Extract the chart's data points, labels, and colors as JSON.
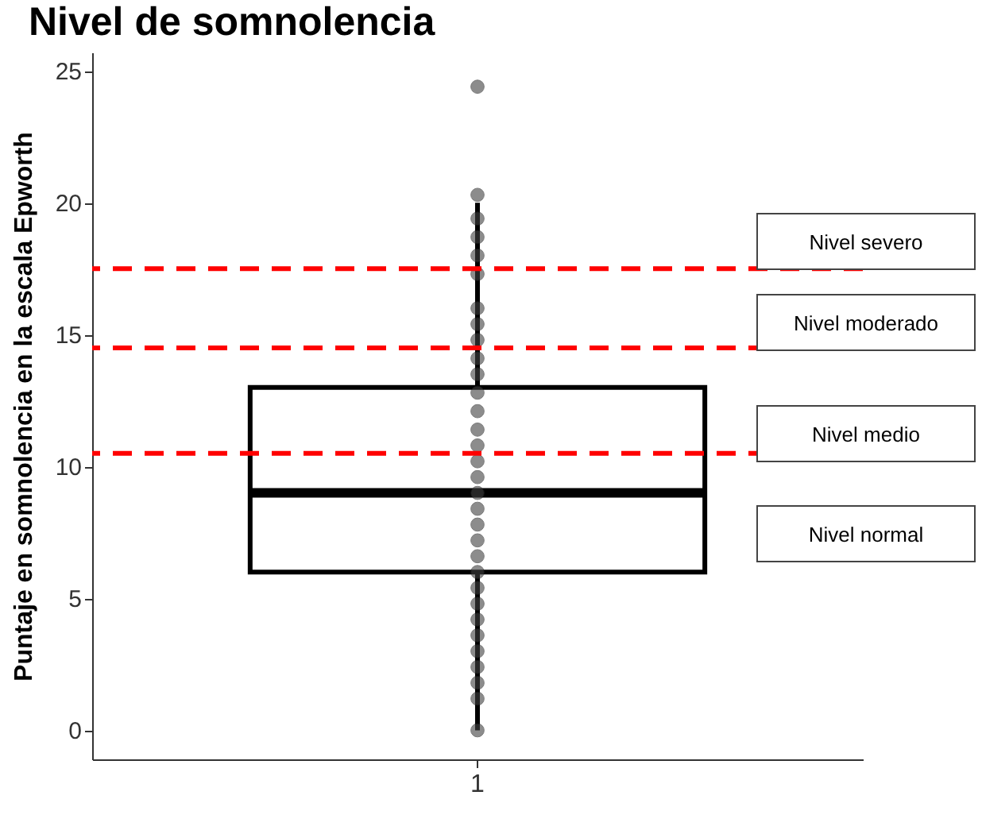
{
  "chart_data": {
    "type": "box",
    "title": "Nivel de somnolencia",
    "ylabel": "Puntaje en somnolencia en la escala Epworth",
    "categories": [
      "1"
    ],
    "boxes": [
      {
        "low": 0,
        "q1": 6,
        "median": 9,
        "q3": 13,
        "high": 20
      }
    ],
    "ylim": [
      -1.1,
      25.7
    ],
    "yticks": [
      0,
      5,
      10,
      15,
      20,
      25
    ],
    "grid": false,
    "marker": "circle",
    "ref_lines": [
      {
        "axis": "y",
        "value": 10.5,
        "color": "#ff0000",
        "line_style": "dashed"
      },
      {
        "axis": "y",
        "value": 14.5,
        "color": "#ff0000",
        "line_style": "dashed"
      },
      {
        "axis": "y",
        "value": 17.5,
        "color": "#ff0000",
        "line_style": "dashed"
      }
    ],
    "annotations": [
      "Nivel severo",
      "Nivel moderado",
      "Nivel medio",
      "Nivel normal"
    ],
    "series": [
      {
        "type": "scatter",
        "color": "#404040",
        "x": [
          "1",
          "1",
          "1",
          "1",
          "1",
          "1",
          "1",
          "1",
          "1",
          "1",
          "1",
          "1",
          "1",
          "1",
          "1",
          "1",
          "1",
          "1",
          "1",
          "1",
          "1",
          "1",
          "1",
          "1",
          "1",
          "1",
          "1",
          "1",
          "1",
          "1",
          "1",
          "1"
        ],
        "values": [
          24.4,
          20.3,
          19.4,
          18.7,
          18.0,
          17.3,
          16.0,
          15.4,
          14.8,
          14.1,
          13.5,
          12.8,
          12.1,
          11.4,
          10.8,
          10.2,
          9.6,
          9.0,
          8.4,
          7.8,
          7.2,
          6.6,
          6.0,
          5.4,
          4.8,
          4.2,
          3.6,
          3.0,
          2.4,
          1.8,
          1.2,
          0.0
        ]
      }
    ]
  }
}
